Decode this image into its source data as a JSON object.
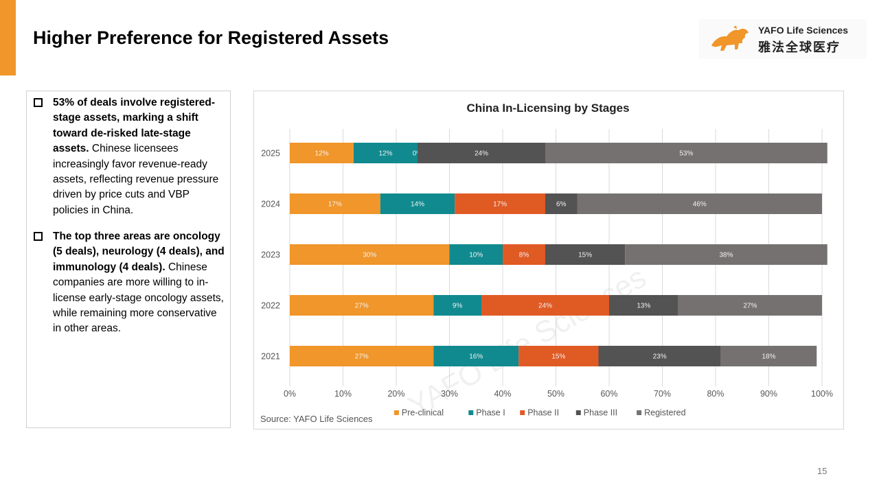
{
  "slide": {
    "title": "Higher Preference for Registered Assets",
    "page_number": "15",
    "accent_color": "#F0962A"
  },
  "logo": {
    "name_en": "YAFO Life Sciences",
    "name_zh": "雅法全球医疗",
    "icon": "lion-icon"
  },
  "bullets": [
    {
      "bold": "53% of deals involve registered-stage assets, marking a shift toward de-risked late-stage assets.",
      "text": " Chinese licensees increasingly favor revenue-ready assets, reflecting revenue pressure driven by price cuts and VBP policies in China."
    },
    {
      "bold": "The top three areas are oncology (5 deals), neurology (4 deals), and immunology (4 deals).",
      "text": " Chinese companies are more willing to in-license early-stage oncology assets, while remaining more conservative in other areas."
    }
  ],
  "chart_data": {
    "type": "bar",
    "orientation": "horizontal",
    "stacked": "percent",
    "title": "China In-Licensing by Stages",
    "source": "Source: YAFO Life Sciences",
    "watermark": "YAFO Life Sciences",
    "categories": [
      "2025",
      "2024",
      "2023",
      "2022",
      "2021"
    ],
    "series": [
      {
        "name": "Pre-clinical",
        "color": "#F0962A",
        "values": [
          12,
          17,
          30,
          27,
          27
        ]
      },
      {
        "name": "Phase I",
        "color": "#108A8F",
        "values": [
          12,
          14,
          10,
          9,
          16
        ]
      },
      {
        "name": "Phase II",
        "color": "#E05A24",
        "values": [
          0,
          17,
          8,
          24,
          15
        ]
      },
      {
        "name": "Phase III",
        "color": "#535353",
        "values": [
          24,
          6,
          15,
          13,
          23
        ]
      },
      {
        "name": "Registered",
        "color": "#767171",
        "values": [
          53,
          46,
          38,
          27,
          18
        ]
      }
    ],
    "xlim": [
      0,
      100
    ],
    "x_ticks": [
      "0%",
      "10%",
      "20%",
      "30%",
      "40%",
      "50%",
      "60%",
      "70%",
      "80%",
      "90%",
      "100%"
    ],
    "grid": true,
    "legend": "bottom"
  }
}
